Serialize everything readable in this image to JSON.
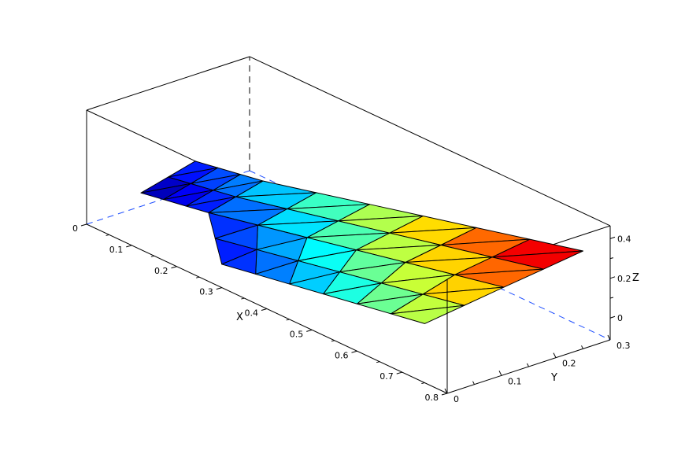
{
  "chart_data": {
    "type": "surface",
    "title": "",
    "colormap": "jet",
    "xlabel": "X",
    "ylabel": "Y",
    "zlabel": "Z",
    "xlim": [
      0,
      0.8
    ],
    "ylim": [
      0,
      0.3
    ],
    "zlim": [
      -0.11,
      0.465
    ],
    "x_ticks": [
      "0",
      "0.1",
      "0.2",
      "0.3",
      "0.4",
      "0.5",
      "0.6",
      "0.7",
      "0.8"
    ],
    "x_tick_values": [
      0,
      0.1,
      0.2,
      0.3,
      0.4,
      0.5,
      0.6,
      0.7,
      0.8
    ],
    "y_ticks": [
      "0",
      "0.1",
      "0.2",
      "0.3"
    ],
    "y_tick_values": [
      0,
      0.1,
      0.2,
      0.3
    ],
    "z_ticks": [
      "0",
      "0.2",
      "0.4"
    ],
    "z_tick_values": [
      0,
      0.2,
      0.4
    ],
    "surface": {
      "strip": {
        "corners": [
          [
            0,
            0.1,
            -0.042
          ],
          [
            0.15,
            0.1,
            0.018
          ],
          [
            0.15,
            0.2,
            0.088
          ],
          [
            0,
            0.2,
            0.028
          ]
        ],
        "cells": [
          3,
          2
        ]
      },
      "main": {
        "left_edge": [
          [
            0.3,
            0,
            0.008
          ],
          [
            0.225,
            0.05,
            0.013
          ],
          [
            0.15,
            0.1,
            0.018
          ],
          [
            0.15,
            0.15,
            0.053
          ],
          [
            0.15,
            0.2,
            0.088
          ]
        ],
        "right_edge": [
          [
            0.75,
            0,
            0.188
          ],
          [
            0.7625,
            0.0625,
            0.237
          ],
          [
            0.775,
            0.125,
            0.286
          ],
          [
            0.7875,
            0.1875,
            0.334
          ],
          [
            0.8,
            0.25,
            0.383
          ]
        ],
        "cells_along_x": 6
      }
    },
    "colors": {
      "box": "#000000",
      "hidden_edges": "#1f4fff",
      "mesh_lines": "#000000"
    }
  }
}
